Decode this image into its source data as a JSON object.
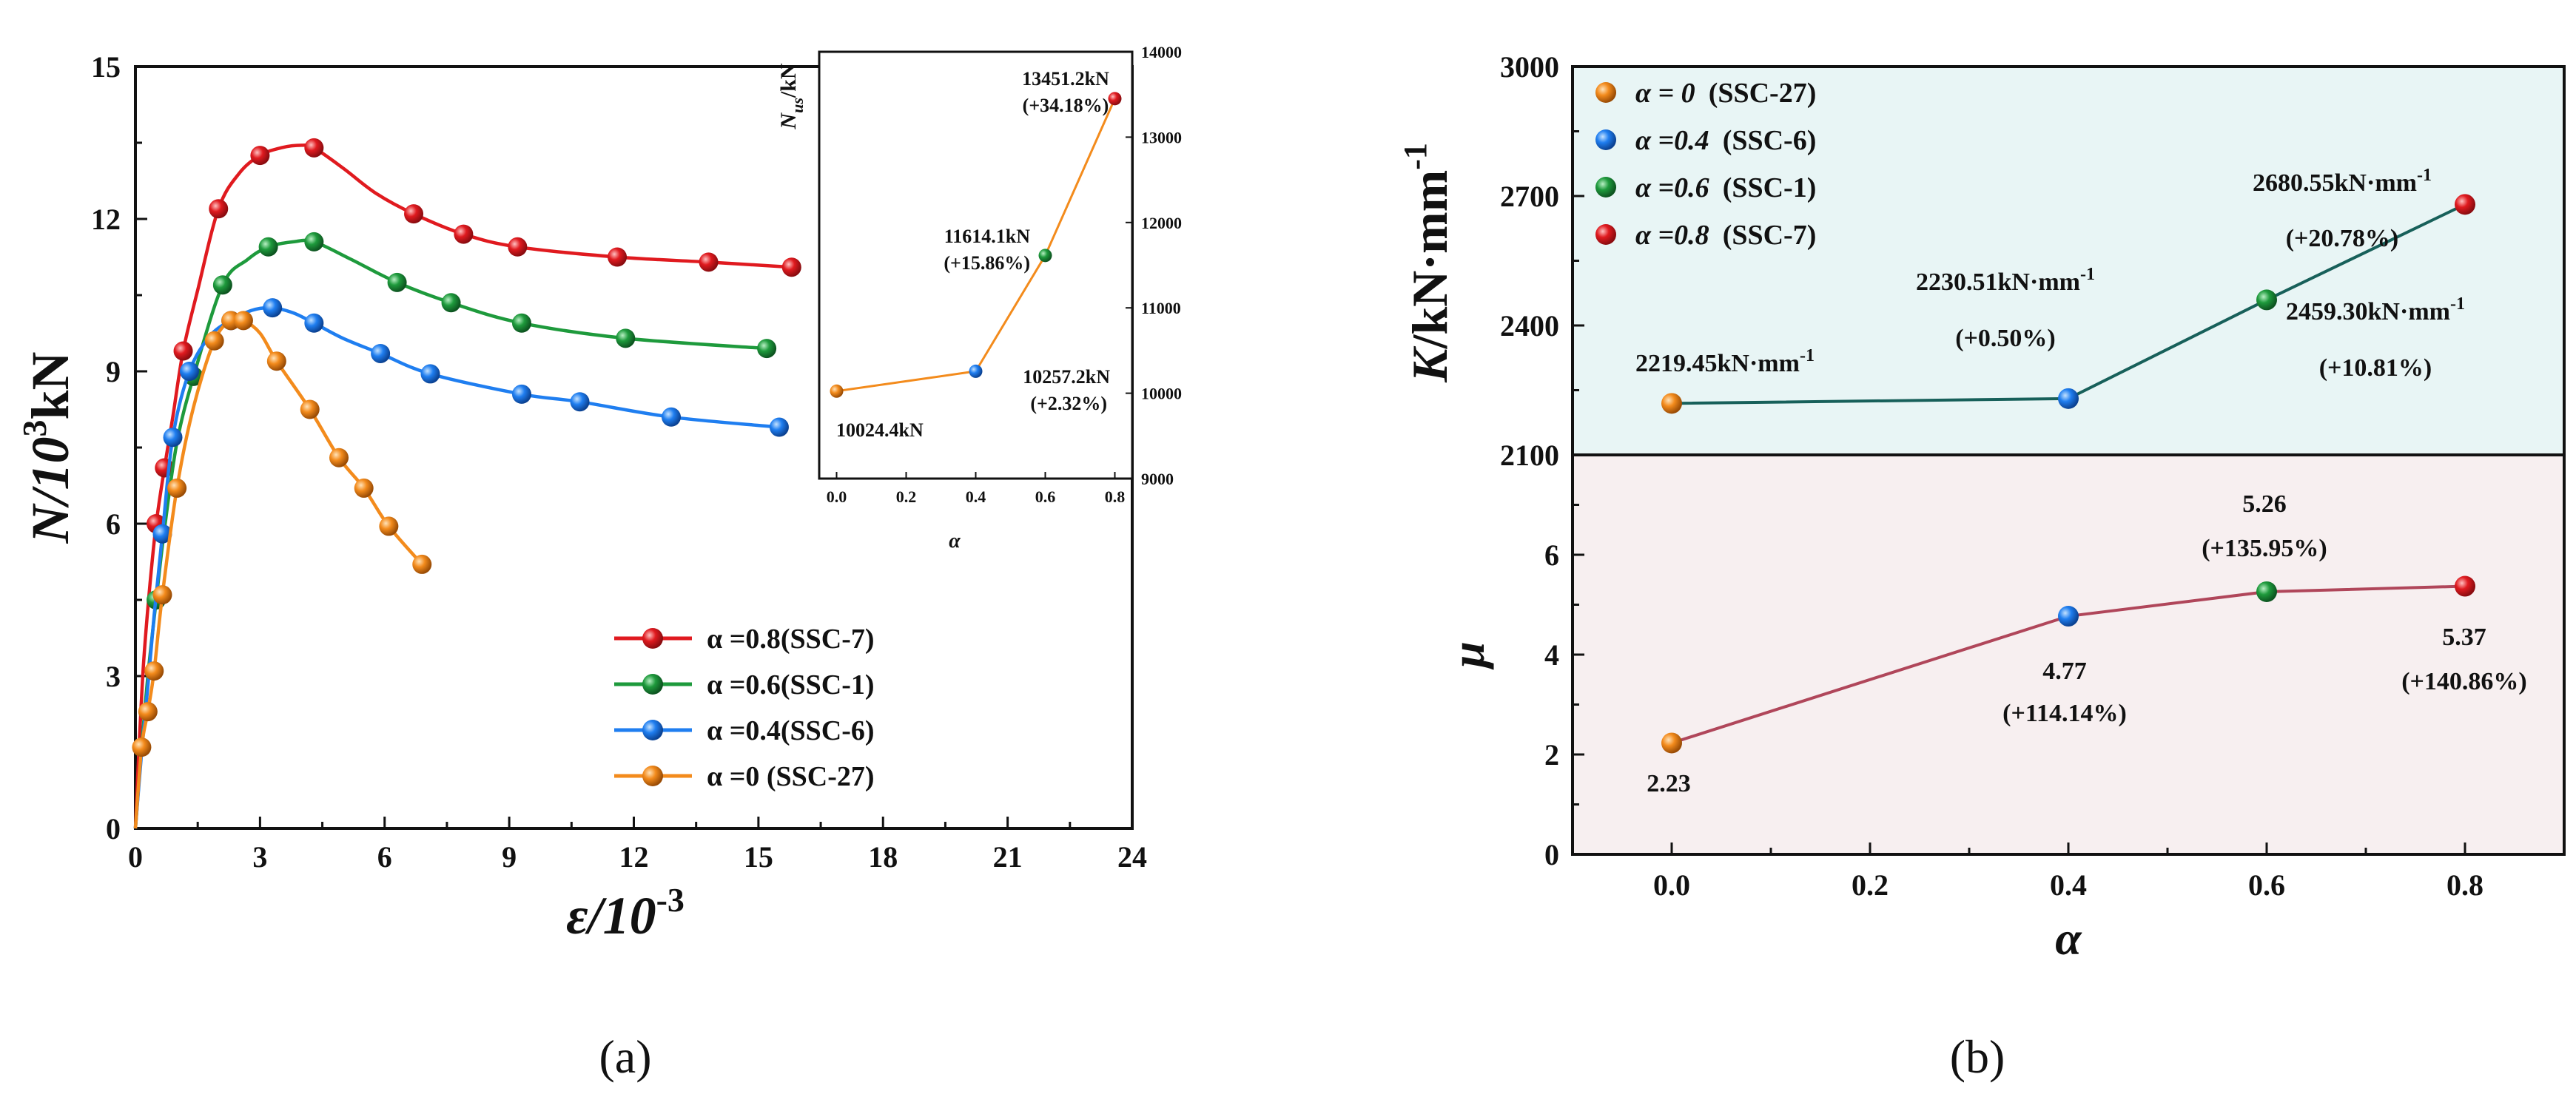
{
  "panel_labels": {
    "a": "(a)",
    "b": "(b)"
  },
  "colors": {
    "red": "#e01a1f",
    "green": "#1e9a3c",
    "blue": "#1f7ef0",
    "orange": "#f38b1c",
    "line_b_top": "#17605a",
    "line_b_bottom": "#b0465a",
    "bg_top": "#e8f5f5",
    "bg_bottom": "#f7eff0"
  },
  "chart_data": [
    {
      "id": "a-main",
      "type": "line",
      "xlabel_main": "ε/10",
      "xlabel_sup": "-3",
      "ylabel_main": "N/10",
      "ylabel_sup": "3",
      "ylabel_tail": "kN",
      "xlim": [
        0,
        24
      ],
      "ylim": [
        0,
        15
      ],
      "xticks": [
        "0",
        "3",
        "6",
        "9",
        "12",
        "15",
        "18",
        "21",
        "24"
      ],
      "yticks": [
        "0",
        "3",
        "6",
        "9",
        "12",
        "15"
      ],
      "legend_position": "lower-center",
      "series": [
        {
          "name": "α =0.8(SSC-7)",
          "color": "red",
          "x": [
            0,
            0.1,
            0.2,
            0.35,
            0.5,
            0.7,
            0.9,
            1.15,
            1.5,
            2.0,
            2.5,
            3.0,
            3.5,
            4.0,
            4.3,
            5.0,
            5.8,
            6.7,
            7.9,
            9.2,
            11.6,
            13.8,
            15.8
          ],
          "y": [
            0,
            1.8,
            3.3,
            4.8,
            6.0,
            7.1,
            8.1,
            9.4,
            10.6,
            12.2,
            12.9,
            13.25,
            13.4,
            13.45,
            13.4,
            13.0,
            12.5,
            12.1,
            11.7,
            11.45,
            11.25,
            11.15,
            11.05
          ],
          "markers": [
            0.5,
            0.7,
            1.15,
            2.0,
            3.0,
            4.3,
            6.7,
            7.9,
            9.2,
            11.6,
            13.8,
            15.8
          ]
        },
        {
          "name": "α =0.6(SSC-1)",
          "color": "green",
          "x": [
            0,
            0.15,
            0.3,
            0.5,
            0.7,
            1.0,
            1.4,
            2.1,
            2.7,
            3.2,
            3.8,
            4.3,
            5.2,
            6.3,
            7.6,
            9.3,
            11.8,
            15.2
          ],
          "y": [
            0,
            1.6,
            3.0,
            4.5,
            5.9,
            7.6,
            8.9,
            10.7,
            11.2,
            11.45,
            11.55,
            11.55,
            11.2,
            10.75,
            10.35,
            9.95,
            9.65,
            9.45
          ],
          "markers": [
            0.5,
            1.4,
            2.1,
            3.2,
            4.3,
            6.3,
            7.6,
            9.3,
            11.8,
            15.2
          ]
        },
        {
          "name": "α =0.4(SSC-6)",
          "color": "blue",
          "x": [
            0,
            0.15,
            0.3,
            0.45,
            0.65,
            0.9,
            1.3,
            1.8,
            2.3,
            2.8,
            3.3,
            3.8,
            4.3,
            5.0,
            5.9,
            7.1,
            9.3,
            10.7,
            12.9,
            15.5
          ],
          "y": [
            0,
            1.5,
            2.8,
            4.2,
            5.8,
            7.7,
            9.0,
            9.7,
            10.0,
            10.2,
            10.25,
            10.15,
            9.95,
            9.65,
            9.35,
            8.95,
            8.55,
            8.4,
            8.1,
            7.9
          ],
          "markers": [
            0.65,
            0.9,
            1.3,
            2.3,
            3.3,
            4.3,
            5.9,
            7.1,
            9.3,
            10.7,
            12.9,
            15.5
          ]
        },
        {
          "name": "α =0 (SSC-27)",
          "color": "orange",
          "x": [
            0,
            0.15,
            0.3,
            0.45,
            0.65,
            1.0,
            1.4,
            1.9,
            2.3,
            2.6,
            3.0,
            3.4,
            4.2,
            4.9,
            5.5,
            6.1,
            6.9
          ],
          "y": [
            0,
            1.6,
            2.3,
            3.1,
            4.6,
            6.7,
            8.3,
            9.6,
            10.0,
            10.0,
            9.75,
            9.2,
            8.25,
            7.3,
            6.7,
            5.95,
            5.2
          ],
          "markers": [
            0.15,
            0.3,
            0.45,
            0.65,
            1.0,
            1.9,
            2.3,
            2.6,
            3.4,
            4.2,
            4.9,
            5.5,
            6.1,
            6.9
          ]
        }
      ]
    },
    {
      "id": "a-inset",
      "type": "line",
      "xlabel": "α",
      "ylabel_main": "N",
      "ylabel_sub": "us",
      "ylabel_tail": "/kN",
      "xlim": [
        -0.05,
        0.85
      ],
      "ylim": [
        9000,
        14000
      ],
      "xticks": [
        "0.0",
        "0.2",
        "0.4",
        "0.6",
        "0.8"
      ],
      "yticks": [
        "9000",
        "10000",
        "11000",
        "12000",
        "13000",
        "14000"
      ],
      "x": [
        0,
        0.4,
        0.6,
        0.8
      ],
      "values": [
        10024.4,
        10257.2,
        11614.1,
        13451.2
      ],
      "point_colors": [
        "orange",
        "blue",
        "green",
        "red"
      ],
      "labels": [
        {
          "value": "10024.4kN",
          "change": ""
        },
        {
          "value": "10257.2kN",
          "change": "(+2.32%)"
        },
        {
          "value": "11614.1kN",
          "change": "(+15.86%)"
        },
        {
          "value": "13451.2kN",
          "change": "(+34.18%)"
        }
      ]
    },
    {
      "id": "b-top",
      "type": "line",
      "ylabel_main": "K/kN·mm",
      "ylabel_sup": "-1",
      "xlim": [
        -0.1,
        0.9
      ],
      "ylim": [
        2100,
        3000
      ],
      "yticks": [
        "2100",
        "2400",
        "2700",
        "3000"
      ],
      "x": [
        0,
        0.4,
        0.6,
        0.8
      ],
      "values": [
        2219.45,
        2230.51,
        2459.3,
        2680.55
      ],
      "point_colors": [
        "orange",
        "blue",
        "green",
        "red"
      ],
      "labels": [
        {
          "value": "2219.45kN·mm",
          "sup": "-1",
          "change": ""
        },
        {
          "value": "2230.51kN·mm",
          "sup": "-1",
          "change": "(+0.50%)"
        },
        {
          "value": "2459.30kN·mm",
          "sup": "-1",
          "change": "(+10.81%)"
        },
        {
          "value": "2680.55kN·mm",
          "sup": "-1",
          "change": "(+20.78%)"
        }
      ],
      "legend_position": "top-left",
      "legend": [
        {
          "alpha": "α = 0",
          "name": "(SSC-27)",
          "color": "orange"
        },
        {
          "alpha": "α =0.4",
          "name": "(SSC-6)",
          "color": "blue"
        },
        {
          "alpha": "α =0.6",
          "name": "(SSC-1)",
          "color": "green"
        },
        {
          "alpha": "α =0.8",
          "name": "(SSC-7)",
          "color": "red"
        }
      ]
    },
    {
      "id": "b-bottom",
      "type": "line",
      "ylabel": "μ",
      "xlabel": "α",
      "xlim": [
        -0.1,
        0.9
      ],
      "ylim": [
        0,
        8
      ],
      "xticks": [
        "0.0",
        "0.2",
        "0.4",
        "0.6",
        "0.8"
      ],
      "yticks": [
        "0",
        "2",
        "4",
        "6"
      ],
      "x": [
        0,
        0.4,
        0.6,
        0.8
      ],
      "values": [
        2.23,
        4.77,
        5.26,
        5.37
      ],
      "point_colors": [
        "orange",
        "blue",
        "green",
        "red"
      ],
      "labels": [
        {
          "value": "2.23",
          "change": ""
        },
        {
          "value": "4.77",
          "change": "(+114.14%)"
        },
        {
          "value": "5.26",
          "change": "(+135.95%)"
        },
        {
          "value": "5.37",
          "change": "(+140.86%)"
        }
      ]
    }
  ]
}
